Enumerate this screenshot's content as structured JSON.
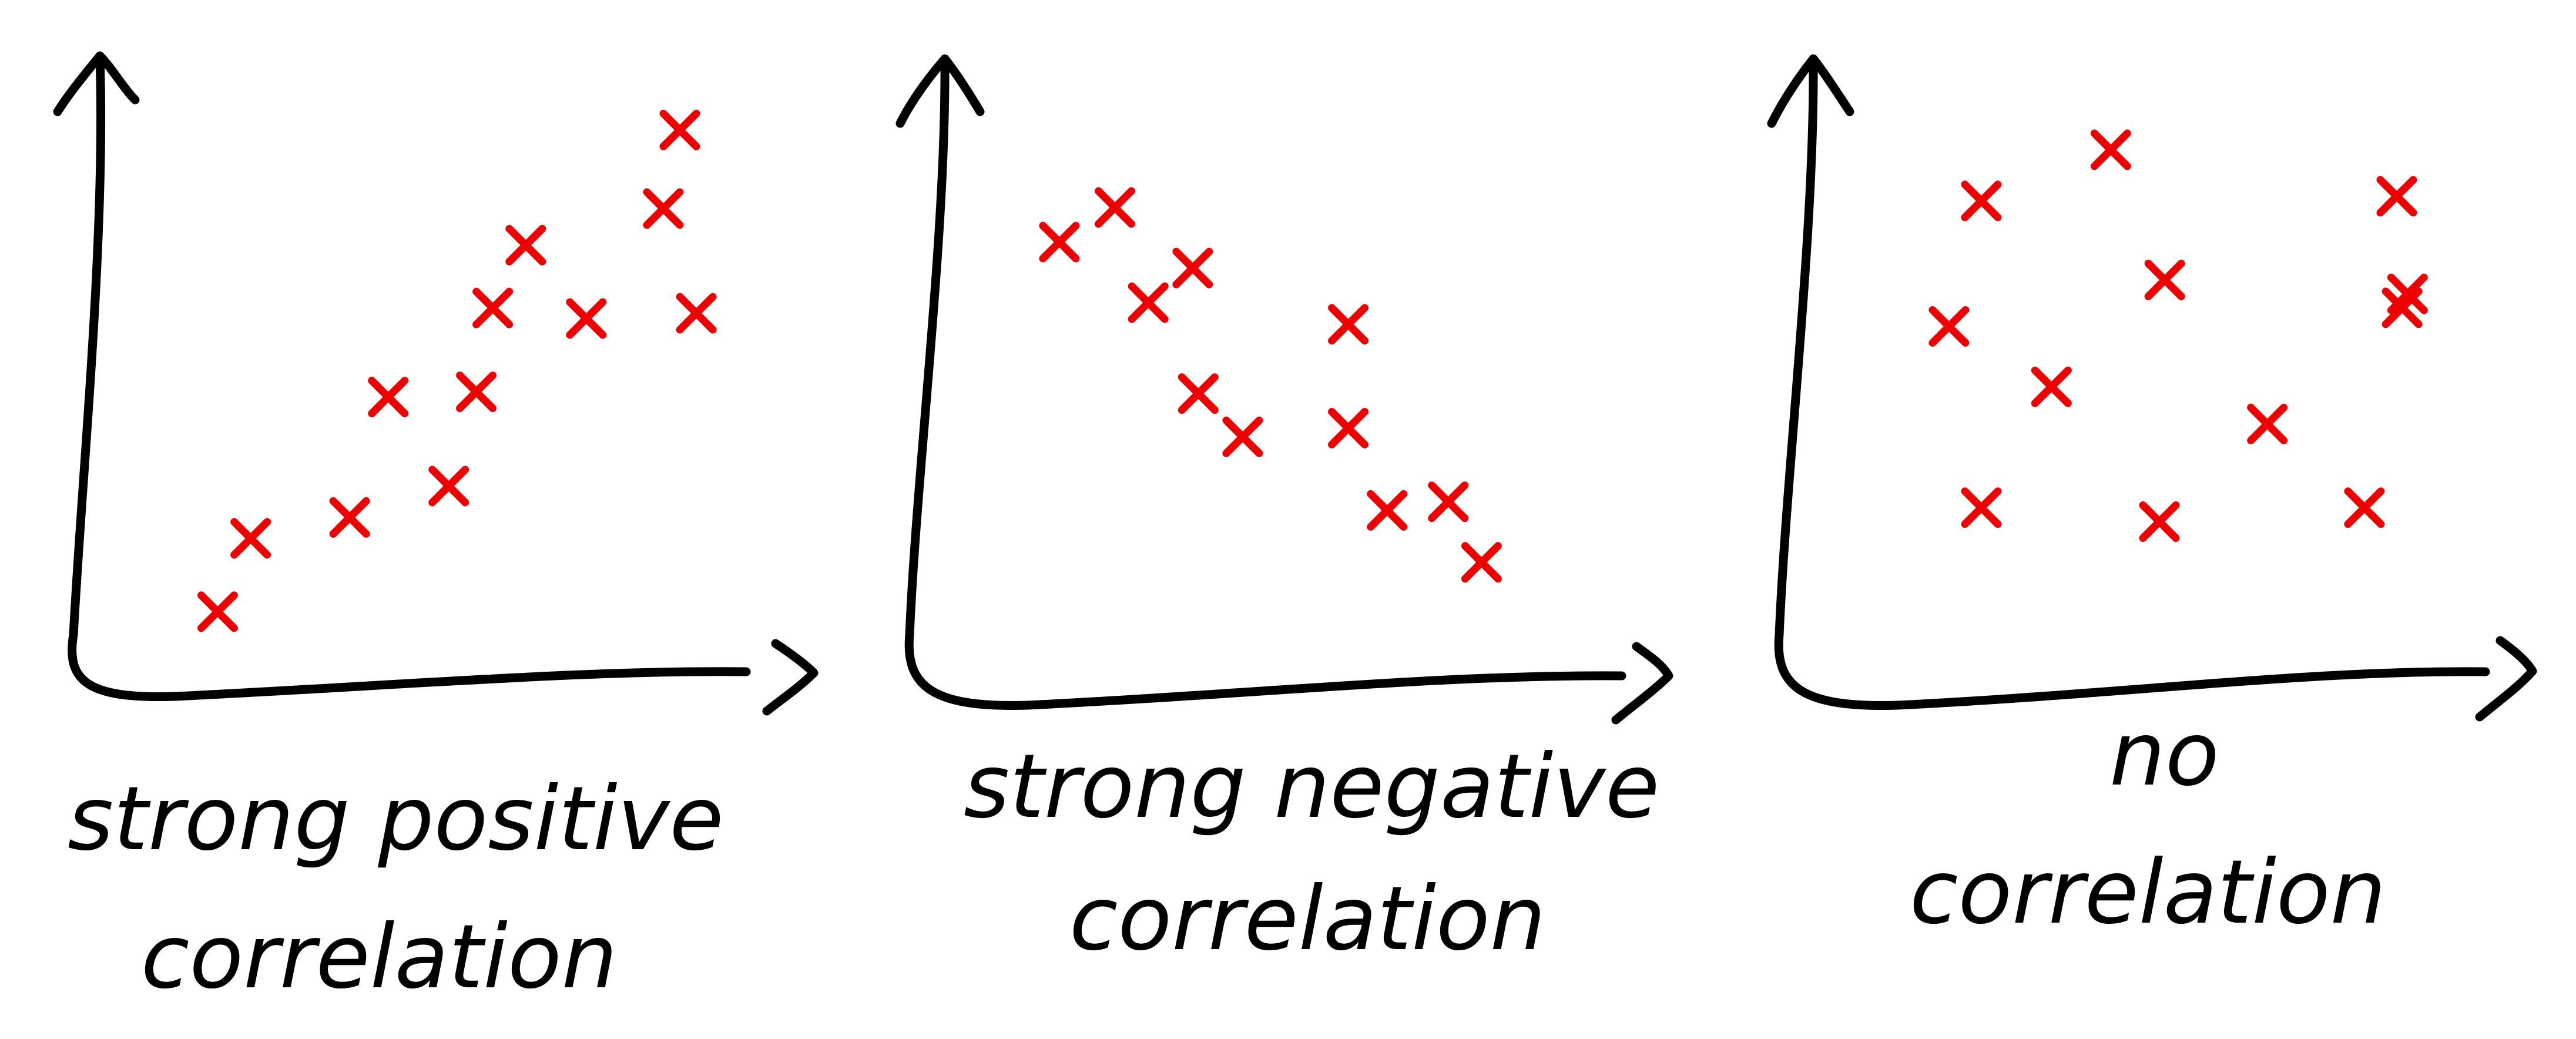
{
  "chart_data": [
    {
      "type": "scatter",
      "caption_lines": [
        "strong positive",
        "correlation"
      ],
      "marker": "x",
      "x": [
        1.5,
        2.1,
        3.9,
        4.6,
        5.7,
        6.2,
        6.5,
        7.1,
        8.2,
        9.6,
        9.9,
        10.2
      ],
      "y": [
        1.0,
        2.4,
        2.8,
        5.1,
        3.4,
        5.2,
        6.8,
        8.0,
        6.6,
        8.7,
        10.2,
        6.7
      ]
    },
    {
      "type": "scatter",
      "caption_lines": [
        "strong negative",
        "correlation"
      ],
      "marker": "x",
      "x": [
        1.3,
        2.3,
        2.9,
        3.7,
        3.8,
        4.6,
        6.5,
        6.5,
        7.2,
        8.3,
        8.9
      ],
      "y": [
        8.8,
        9.6,
        7.4,
        8.2,
        5.3,
        4.3,
        6.9,
        4.5,
        2.6,
        2.8,
        1.4
      ]
    },
    {
      "type": "scatter",
      "caption_lines": [
        "no",
        "correlation"
      ],
      "marker": "x",
      "x": [
        1.6,
        2.2,
        3.5,
        4.6,
        5.6,
        7.5,
        9.3,
        9.9,
        10.0,
        2.2,
        5.5,
        10.1
      ],
      "y": [
        6.0,
        8.7,
        4.7,
        9.8,
        7.0,
        3.9,
        2.1,
        8.8,
        6.4,
        2.1,
        1.8,
        6.7
      ]
    }
  ],
  "colors": {
    "axis": "#000000",
    "marker": "#ee0000",
    "background": "#ffffff"
  }
}
